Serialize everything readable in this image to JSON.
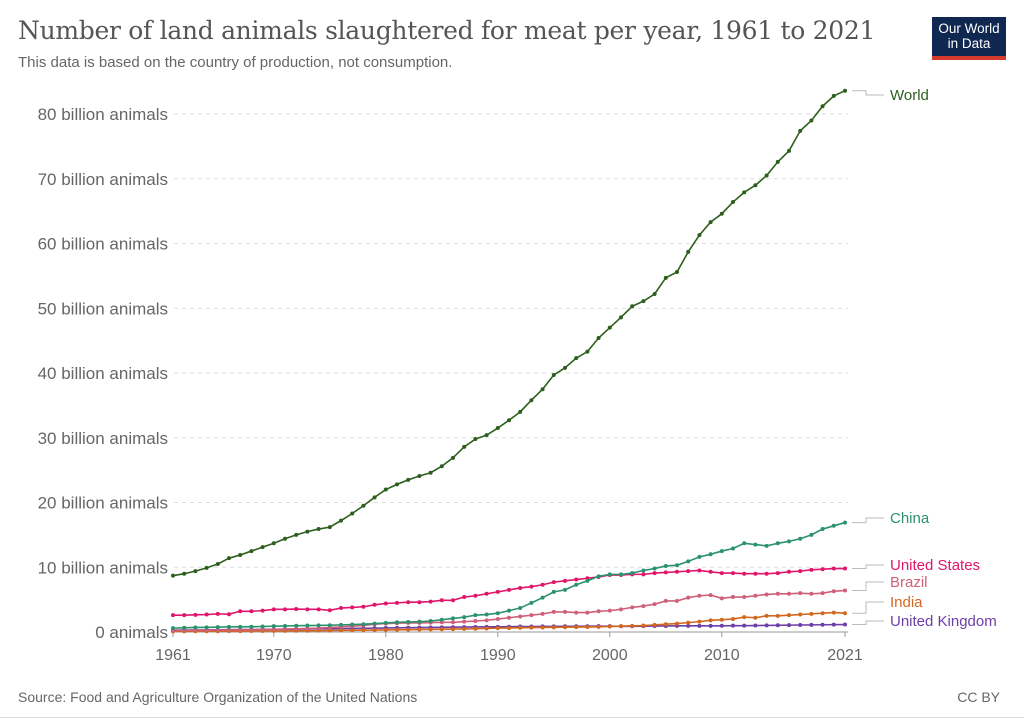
{
  "header": {
    "title": "Number of land animals slaughtered for meat per year, 1961 to 2021",
    "subtitle": "This data is based on the country of production, not consumption.",
    "logo_text": "Our World in Data",
    "logo_colors": {
      "background": "#0f2751",
      "underline": "#d73b2b"
    }
  },
  "footer": {
    "source": "Source: Food and Agriculture Organization of the United Nations",
    "license": "CC BY"
  },
  "chart_data": {
    "type": "line",
    "title": "Number of land animals slaughtered for meat per year, 1961 to 2021",
    "subtitle": "This data is based on the country of production, not consumption.",
    "xlim": [
      1961,
      2021
    ],
    "ylim": [
      0,
      80000000000
    ],
    "x_ticks": [
      1961,
      1970,
      1980,
      1990,
      2000,
      2010,
      2021
    ],
    "y_ticks": [
      0,
      10,
      20,
      30,
      40,
      50,
      60,
      70,
      80
    ],
    "y_tick_labels": [
      "0 animals",
      "10 billion animals",
      "20 billion animals",
      "30 billion animals",
      "40 billion animals",
      "50 billion animals",
      "60 billion animals",
      "70 billion animals",
      "80 billion animals"
    ],
    "y_unit": "billion animals",
    "grid": "horizontal dashed",
    "legend": "inline labels at line ends (right)",
    "series": [
      {
        "name": "World",
        "color": "#2c5e1e",
        "values": [
          8.7,
          9.0,
          9.4,
          9.9,
          10.5,
          11.4,
          11.9,
          12.5,
          13.1,
          13.7,
          14.4,
          15.0,
          15.5,
          15.9,
          16.2,
          17.2,
          18.3,
          19.5,
          20.8,
          22.0,
          22.8,
          23.5,
          24.1,
          24.6,
          25.6,
          26.9,
          28.6,
          29.8,
          30.4,
          31.5,
          32.7,
          34.0,
          35.8,
          37.5,
          39.7,
          40.8,
          42.3,
          43.3,
          45.4,
          47.0,
          48.6,
          50.3,
          51.1,
          52.2,
          54.7,
          55.6,
          58.7,
          61.3,
          63.3,
          64.6,
          66.4,
          67.9,
          69.0,
          70.5,
          72.6,
          74.3,
          77.4,
          79.0,
          81.2,
          82.8,
          83.6
        ]
      },
      {
        "name": "China",
        "color": "#2b9270",
        "values": [
          0.6,
          0.65,
          0.7,
          0.72,
          0.75,
          0.8,
          0.8,
          0.82,
          0.85,
          0.9,
          0.93,
          0.97,
          1.0,
          1.02,
          1.05,
          1.1,
          1.15,
          1.2,
          1.3,
          1.4,
          1.5,
          1.55,
          1.6,
          1.7,
          1.9,
          2.1,
          2.3,
          2.6,
          2.7,
          2.9,
          3.3,
          3.7,
          4.5,
          5.3,
          6.2,
          6.5,
          7.3,
          7.9,
          8.6,
          8.9,
          8.9,
          9.1,
          9.5,
          9.8,
          10.2,
          10.3,
          10.9,
          11.6,
          12.0,
          12.5,
          12.9,
          13.7,
          13.5,
          13.3,
          13.7,
          14.0,
          14.4,
          15.0,
          15.9,
          16.4,
          16.9
        ]
      },
      {
        "name": "United States",
        "color": "#e0156b",
        "values": [
          2.6,
          2.6,
          2.65,
          2.7,
          2.8,
          2.75,
          3.2,
          3.2,
          3.3,
          3.5,
          3.5,
          3.55,
          3.5,
          3.5,
          3.35,
          3.7,
          3.8,
          3.9,
          4.2,
          4.4,
          4.5,
          4.6,
          4.6,
          4.7,
          4.9,
          4.9,
          5.4,
          5.6,
          5.9,
          6.2,
          6.5,
          6.8,
          7.0,
          7.3,
          7.7,
          7.9,
          8.1,
          8.3,
          8.5,
          8.8,
          8.8,
          8.9,
          8.9,
          9.1,
          9.2,
          9.3,
          9.4,
          9.5,
          9.3,
          9.1,
          9.1,
          9.0,
          9.0,
          9.0,
          9.1,
          9.3,
          9.4,
          9.6,
          9.7,
          9.8,
          9.8
        ]
      },
      {
        "name": "Brazil",
        "color": "#d0607a",
        "values": [
          0.25,
          0.26,
          0.27,
          0.28,
          0.3,
          0.32,
          0.34,
          0.36,
          0.38,
          0.4,
          0.45,
          0.5,
          0.55,
          0.6,
          0.7,
          0.8,
          0.9,
          1.0,
          1.2,
          1.3,
          1.35,
          1.4,
          1.4,
          1.45,
          1.5,
          1.5,
          1.6,
          1.7,
          1.8,
          2.0,
          2.2,
          2.4,
          2.6,
          2.8,
          3.1,
          3.1,
          3.0,
          3.0,
          3.2,
          3.3,
          3.5,
          3.8,
          4.0,
          4.3,
          4.8,
          4.8,
          5.3,
          5.6,
          5.7,
          5.2,
          5.4,
          5.4,
          5.6,
          5.8,
          5.9,
          5.9,
          6.0,
          5.9,
          6.0,
          6.3,
          6.4
        ]
      },
      {
        "name": "India",
        "color": "#d2681f",
        "values": [
          0.1,
          0.1,
          0.11,
          0.12,
          0.12,
          0.13,
          0.14,
          0.15,
          0.16,
          0.17,
          0.18,
          0.19,
          0.2,
          0.21,
          0.22,
          0.24,
          0.26,
          0.28,
          0.3,
          0.32,
          0.34,
          0.36,
          0.38,
          0.4,
          0.42,
          0.45,
          0.48,
          0.5,
          0.55,
          0.6,
          0.62,
          0.65,
          0.68,
          0.7,
          0.72,
          0.74,
          0.76,
          0.78,
          0.8,
          0.85,
          0.9,
          0.95,
          1.0,
          1.1,
          1.2,
          1.3,
          1.45,
          1.6,
          1.8,
          1.9,
          2.0,
          2.3,
          2.2,
          2.5,
          2.5,
          2.6,
          2.7,
          2.8,
          2.9,
          3.0,
          2.9
        ]
      },
      {
        "name": "United Kingdom",
        "color": "#6c3fa6",
        "values": [
          0.3,
          0.3,
          0.32,
          0.33,
          0.34,
          0.35,
          0.37,
          0.38,
          0.4,
          0.42,
          0.44,
          0.46,
          0.48,
          0.5,
          0.5,
          0.52,
          0.55,
          0.57,
          0.6,
          0.62,
          0.64,
          0.66,
          0.68,
          0.7,
          0.72,
          0.74,
          0.76,
          0.78,
          0.8,
          0.8,
          0.82,
          0.84,
          0.85,
          0.86,
          0.87,
          0.88,
          0.88,
          0.89,
          0.9,
          0.9,
          0.88,
          0.88,
          0.9,
          0.92,
          0.93,
          0.95,
          0.95,
          0.95,
          0.94,
          0.96,
          0.98,
          0.98,
          1.0,
          1.02,
          1.04,
          1.06,
          1.08,
          1.1,
          1.12,
          1.14,
          1.15
        ]
      }
    ]
  }
}
